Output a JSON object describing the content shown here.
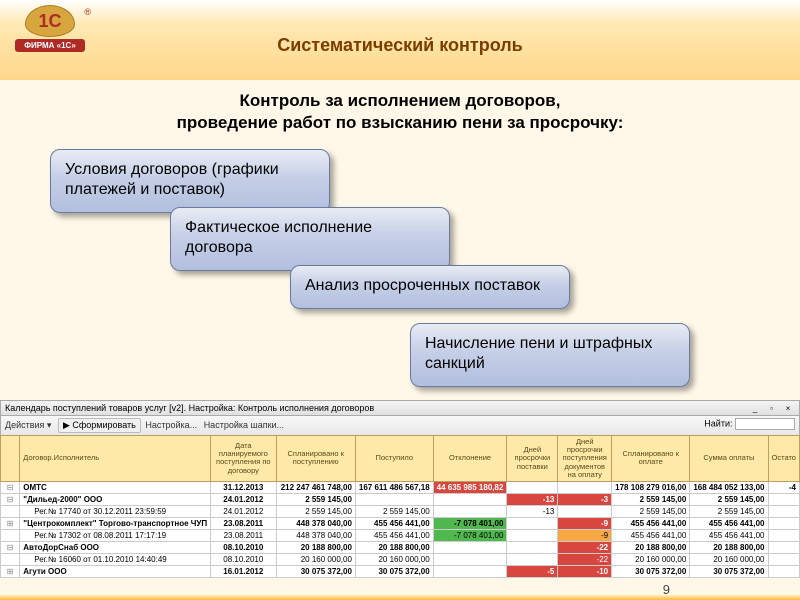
{
  "logo": {
    "symbol": "1C",
    "brand": "ФИРМА «1С»",
    "reg": "®"
  },
  "slide_title": "Систематический контроль",
  "subtitle_line1": "Контроль за исполнением договоров,",
  "subtitle_line2": "проведение работ по взысканию пени за просрочку:",
  "boxes": {
    "b1": "Условия договоров (графики платежей и поставок)",
    "b2": "Фактическое исполнение договора",
    "b3": "Анализ просроченных поставок",
    "b4": "Начисление пени и штрафных санкций"
  },
  "window": {
    "title": "Календарь поступлений товаров услуг [v2]. Настройка: Контроль исполнения договоров",
    "toolbar": {
      "actions": "Действия ▾",
      "form": "▶ Сформировать",
      "settings": "Настройка...",
      "header": "Настройка шапки...",
      "findby": "Найти:"
    }
  },
  "grid": {
    "headers": {
      "tree": "",
      "contractor": "Договор.Исполнитель",
      "planned_date": "Дата планируемого поступления по договору",
      "planned_in": "Спланировано к поступлению",
      "received": "Поступило",
      "deviation": "Отклонение",
      "days_delivery": "Дней просрочки поставки",
      "days_docs": "Дней просрочки поступления документов на оплату",
      "planned_pay": "Спланировано к оплате",
      "paid": "Сумма оплаты",
      "balance": "Остато"
    },
    "rows": [
      {
        "tree": "⊟",
        "contractor": "ОМТС",
        "date": "31.12.2013",
        "pin": "212 247 461 748,00",
        "rec": "167 611 486 567,18",
        "dev": "44 635 985 180,82",
        "dd": "",
        "ddoc": "",
        "ppay": "178 108 279 016,00",
        "paid": "168 484 052 133,00",
        "bal": "-4",
        "bold": true,
        "dev_red": true
      },
      {
        "tree": "⊟",
        "contractor": "\"Дильед-2000\" ООО",
        "date": "24.01.2012",
        "pin": "2 559 145,00",
        "rec": "",
        "dev": "",
        "dd": "-13",
        "ddoc": "-3",
        "ppay": "2 559 145,00",
        "paid": "2 559 145,00",
        "bal": "",
        "bold": true,
        "dd_red": true,
        "ddoc_red": true
      },
      {
        "tree": "",
        "contractor": "Рег.№ 17740 от 30.12.2011 23:59:59",
        "date": "24.01.2012",
        "pin": "2 559 145,00",
        "rec": "2 559 145,00",
        "dev": "",
        "dd": "-13",
        "ddoc": "",
        "ppay": "2 559 145,00",
        "paid": "2 559 145,00",
        "bal": ""
      },
      {
        "tree": "⊞",
        "contractor": "\"Центрокомплект\" Торгово-транспортное ЧУП",
        "date": "23.08.2011",
        "pin": "448 378 040,00",
        "rec": "455 456 441,00",
        "dev": "-7 078 401,00",
        "dd": "",
        "ddoc": "-9",
        "ppay": "455 456 441,00",
        "paid": "455 456 441,00",
        "bal": "",
        "bold": true,
        "dev_green": true,
        "ddoc_red": true
      },
      {
        "tree": "",
        "contractor": "Рег.№ 17302 от 08.08.2011 17:17:19",
        "date": "23.08.2011",
        "pin": "448 378 040,00",
        "rec": "455 456 441,00",
        "dev": "-7 078 401,00",
        "dd": "",
        "ddoc": "-9",
        "ppay": "455 456 441,00",
        "paid": "455 456 441,00",
        "bal": "",
        "dev_green": true,
        "ddoc_orange": true
      },
      {
        "tree": "⊟",
        "contractor": "АвтоДорСнаб ООО",
        "date": "08.10.2010",
        "pin": "20 188 800,00",
        "rec": "20 188 800,00",
        "dev": "",
        "dd": "",
        "ddoc": "-22",
        "ppay": "20 188 800,00",
        "paid": "20 188 800,00",
        "bal": "",
        "bold": true,
        "ddoc_red": true
      },
      {
        "tree": "",
        "contractor": "Рег.№ 16060 от 01.10.2010 14:40:49",
        "date": "08.10.2010",
        "pin": "20 160 000,00",
        "rec": "20 160 000,00",
        "dev": "",
        "dd": "",
        "ddoc": "-22",
        "ppay": "20 160 000,00",
        "paid": "20 160 000,00",
        "bal": "",
        "ddoc_red": true
      },
      {
        "tree": "⊞",
        "contractor": "Агути ООО",
        "date": "16.01.2012",
        "pin": "30 075 372,00",
        "rec": "30 075 372,00",
        "dev": "",
        "dd": "-5",
        "ddoc": "-10",
        "ppay": "30 075 372,00",
        "paid": "30 075 372,00",
        "bal": "",
        "bold": true,
        "dd_red": true,
        "ddoc_red": true
      }
    ]
  },
  "page_number": "9",
  "colors": {
    "title": "#7a3e00",
    "box_border": "#6a7a9f",
    "red": "#d84640",
    "green": "#4fb84f",
    "orange": "#f5a843"
  }
}
